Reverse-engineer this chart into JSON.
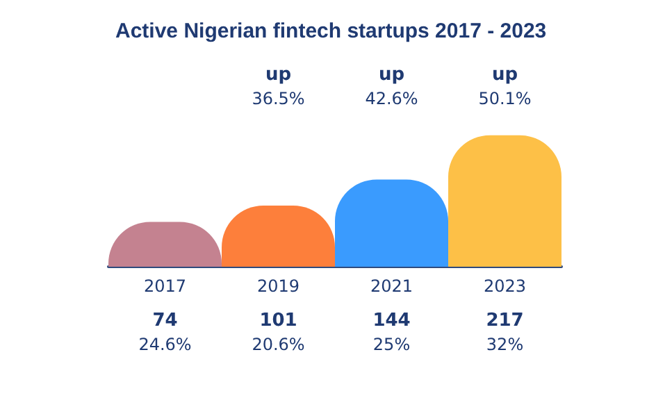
{
  "chart_data": {
    "type": "bar",
    "title": "Active Nigerian fintech startups 2017 - 2023",
    "categories": [
      "2017",
      "2019",
      "2021",
      "2023"
    ],
    "values": [
      74,
      101,
      144,
      217
    ],
    "value_labels": [
      "74\n24.6%",
      "101\n20.6%",
      "144\n25%",
      "217\n32%"
    ],
    "colors": [
      "#c48290",
      "#fd7f3b",
      "#3a9bfe",
      "#fdc047"
    ],
    "tick_labels": "x",
    "grid": false,
    "annotations": [
      "up\n36.5%",
      "up\n42.6%",
      "up\n50.1%"
    ]
  }
}
